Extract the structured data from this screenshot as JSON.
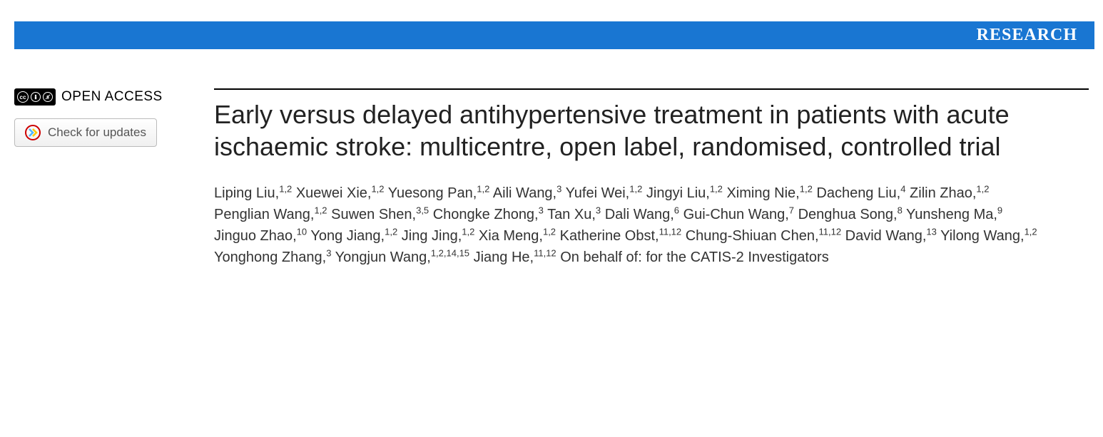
{
  "banner": {
    "label": "RESEARCH",
    "background_color": "#1976d2",
    "text_color": "#ffffff"
  },
  "sidebar": {
    "open_access_label": "OPEN ACCESS",
    "cc_main": "cc",
    "cc_by": "BY",
    "cc_nc": "NC",
    "check_updates_label": "Check for updates"
  },
  "article": {
    "title": "Early versus delayed antihypertensive treatment in patients with acute ischaemic stroke: multicentre, open label, randomised, controlled trial",
    "authors": [
      {
        "name": "Liping Liu",
        "affil": "1,2"
      },
      {
        "name": "Xuewei Xie",
        "affil": "1,2"
      },
      {
        "name": "Yuesong Pan",
        "affil": "1,2"
      },
      {
        "name": "Aili Wang",
        "affil": "3"
      },
      {
        "name": "Yufei Wei",
        "affil": "1,2"
      },
      {
        "name": "Jingyi Liu",
        "affil": "1,2"
      },
      {
        "name": "Ximing Nie",
        "affil": "1,2"
      },
      {
        "name": "Dacheng Liu",
        "affil": "4"
      },
      {
        "name": "Zilin Zhao",
        "affil": "1,2"
      },
      {
        "name": "Penglian Wang",
        "affil": "1,2"
      },
      {
        "name": "Suwen Shen",
        "affil": "3,5"
      },
      {
        "name": "Chongke Zhong",
        "affil": "3"
      },
      {
        "name": "Tan Xu",
        "affil": "3"
      },
      {
        "name": "Dali Wang",
        "affil": "6"
      },
      {
        "name": "Gui-Chun Wang",
        "affil": "7"
      },
      {
        "name": "Denghua Song",
        "affil": "8"
      },
      {
        "name": "Yunsheng Ma",
        "affil": "9"
      },
      {
        "name": "Jinguo Zhao",
        "affil": "10"
      },
      {
        "name": "Yong Jiang",
        "affil": "1,2"
      },
      {
        "name": "Jing Jing",
        "affil": "1,2"
      },
      {
        "name": "Xia Meng",
        "affil": "1,2"
      },
      {
        "name": "Katherine Obst",
        "affil": "11,12"
      },
      {
        "name": "Chung-Shiuan Chen",
        "affil": "11,12"
      },
      {
        "name": "David Wang",
        "affil": "13"
      },
      {
        "name": "Yilong Wang",
        "affil": "1,2"
      },
      {
        "name": "Yonghong Zhang",
        "affil": "3"
      },
      {
        "name": "Yongjun Wang",
        "affil": "1,2,14,15"
      },
      {
        "name": "Jiang He",
        "affil": "11,12"
      }
    ],
    "on_behalf_of": "On behalf of: for the CATIS-2 Investigators"
  },
  "colors": {
    "banner_bg": "#1976d2",
    "banner_text": "#ffffff",
    "title_text": "#222222",
    "author_text": "#333333",
    "page_bg": "#ffffff",
    "border_rule": "#000000"
  },
  "typography": {
    "title_fontsize": 36,
    "author_fontsize": 20,
    "banner_fontsize": 24,
    "affil_fontsize": 13
  }
}
